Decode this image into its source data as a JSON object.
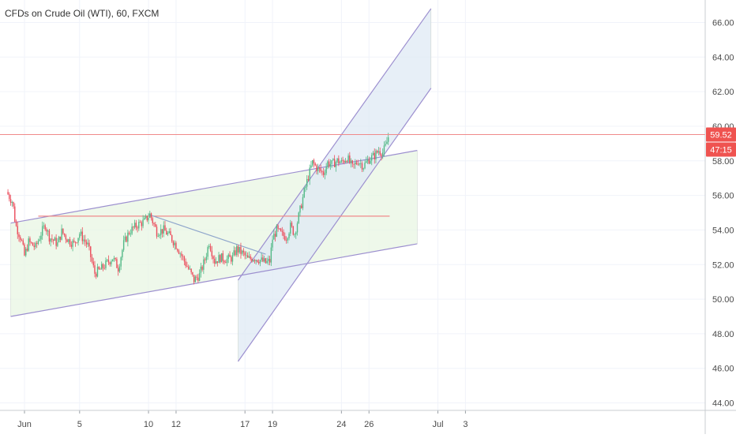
{
  "header": {
    "title": "CFDs on Crude Oil (WTI), 60, FXCM"
  },
  "colors": {
    "background": "#ffffff",
    "grid": "#f0f3fa",
    "up_candle": "#53b987",
    "down_candle": "#eb4d5c",
    "channel_line": "#9c8fcf",
    "channel_fill_green": "#e8f5e3",
    "channel_fill_blue": "#dfeaf4",
    "resistance_line": "#f08a8a",
    "price_tag": "#ef5350",
    "axis_text": "#4a4a4a"
  },
  "badges": {
    "last_price": "59.52",
    "countdown": "47:15"
  },
  "chart_data": {
    "type": "candlestick",
    "title": "CFDs on Crude Oil (WTI), 60, FXCM",
    "symbol": "CFDs on Crude Oil (WTI)",
    "interval": "60",
    "source": "FXCM",
    "grid": true,
    "y_axis": {
      "position": "right",
      "ylim": [
        42.2,
        67.3
      ],
      "ticks": [
        "44.00",
        "46.00",
        "48.00",
        "50.00",
        "52.00",
        "54.00",
        "56.00",
        "58.00",
        "60.00",
        "62.00",
        "64.00",
        "66.00"
      ]
    },
    "x_axis": {
      "ticks": [
        {
          "label": "Jun",
          "day": 1
        },
        {
          "label": "5",
          "day": 5
        },
        {
          "label": "10",
          "day": 10
        },
        {
          "label": "12",
          "day": 12
        },
        {
          "label": "17",
          "day": 17
        },
        {
          "label": "19",
          "day": 19
        },
        {
          "label": "24",
          "day": 24
        },
        {
          "label": "26",
          "day": 26
        },
        {
          "label": "Jul",
          "day": 31
        },
        {
          "label": "3",
          "day": 33
        }
      ]
    },
    "price_path": [
      [
        -0.3,
        56.2
      ],
      [
        0.15,
        55.6
      ],
      [
        0.35,
        54.3
      ],
      [
        0.75,
        53.5
      ],
      [
        1.0,
        52.5
      ],
      [
        1.3,
        53.3
      ],
      [
        1.8,
        53.0
      ],
      [
        2.2,
        53.8
      ],
      [
        2.5,
        54.3
      ],
      [
        2.8,
        53.6
      ],
      [
        3.4,
        53.2
      ],
      [
        3.7,
        53.9
      ],
      [
        4.2,
        53.4
      ],
      [
        4.6,
        53.2
      ],
      [
        5.0,
        53.8
      ],
      [
        5.6,
        53.1
      ],
      [
        6.1,
        51.5
      ],
      [
        6.5,
        51.7
      ],
      [
        7.0,
        52.1
      ],
      [
        7.4,
        52.4
      ],
      [
        7.8,
        51.8
      ],
      [
        8.2,
        53.2
      ],
      [
        8.6,
        53.9
      ],
      [
        9.2,
        54.3
      ],
      [
        9.7,
        54.5
      ],
      [
        10.1,
        54.9
      ],
      [
        10.6,
        53.9
      ],
      [
        11.1,
        54.0
      ],
      [
        11.6,
        53.6
      ],
      [
        12.1,
        53.0
      ],
      [
        12.6,
        52.2
      ],
      [
        13.0,
        51.6
      ],
      [
        13.3,
        51.1
      ],
      [
        13.7,
        51.4
      ],
      [
        14.1,
        52.3
      ],
      [
        14.4,
        53.3
      ],
      [
        14.8,
        52.2
      ],
      [
        15.2,
        52.4
      ],
      [
        15.7,
        52.3
      ],
      [
        16.1,
        52.4
      ],
      [
        16.4,
        52.9
      ],
      [
        16.9,
        52.6
      ],
      [
        17.2,
        52.3
      ],
      [
        17.6,
        52.4
      ],
      [
        18.0,
        52.3
      ],
      [
        18.5,
        52.1
      ],
      [
        18.8,
        52.2
      ],
      [
        19.0,
        53.5
      ],
      [
        19.3,
        54.0
      ],
      [
        19.7,
        53.7
      ],
      [
        20.0,
        53.6
      ],
      [
        20.3,
        54.2
      ],
      [
        20.6,
        53.8
      ],
      [
        20.9,
        54.8
      ],
      [
        21.3,
        56.2
      ],
      [
        21.6,
        57.1
      ],
      [
        21.9,
        57.9
      ],
      [
        22.3,
        57.5
      ],
      [
        22.7,
        57.3
      ],
      [
        23.0,
        57.9
      ],
      [
        23.3,
        57.8
      ],
      [
        23.7,
        58.0
      ],
      [
        24.0,
        57.9
      ],
      [
        24.4,
        58.2
      ],
      [
        24.8,
        57.6
      ],
      [
        25.2,
        58.0
      ],
      [
        25.6,
        57.7
      ],
      [
        26.0,
        58.1
      ],
      [
        26.4,
        58.3
      ],
      [
        26.7,
        58.6
      ],
      [
        27.0,
        58.5
      ],
      [
        27.2,
        58.8
      ],
      [
        27.45,
        59.53
      ]
    ],
    "annotations": {
      "horizontal_line": {
        "price": 59.52
      },
      "resistance_segment": {
        "start": [
          2.0,
          54.8
        ],
        "end": [
          27.5,
          54.8
        ]
      },
      "descending_trendline": {
        "start": [
          10.0,
          54.9
        ],
        "end": [
          18.5,
          52.6
        ]
      },
      "green_channel": {
        "upper": {
          "start": [
            0.0,
            54.4
          ],
          "end": [
            29.5,
            58.6
          ]
        },
        "lower": {
          "start": [
            0.0,
            49.0
          ],
          "end": [
            29.5,
            53.2
          ]
        }
      },
      "blue_channel": {
        "upper": {
          "start": [
            16.5,
            51.1
          ],
          "end": [
            30.5,
            66.8
          ]
        },
        "lower": {
          "start": [
            16.5,
            46.4
          ],
          "end": [
            30.5,
            62.2
          ]
        }
      }
    }
  }
}
